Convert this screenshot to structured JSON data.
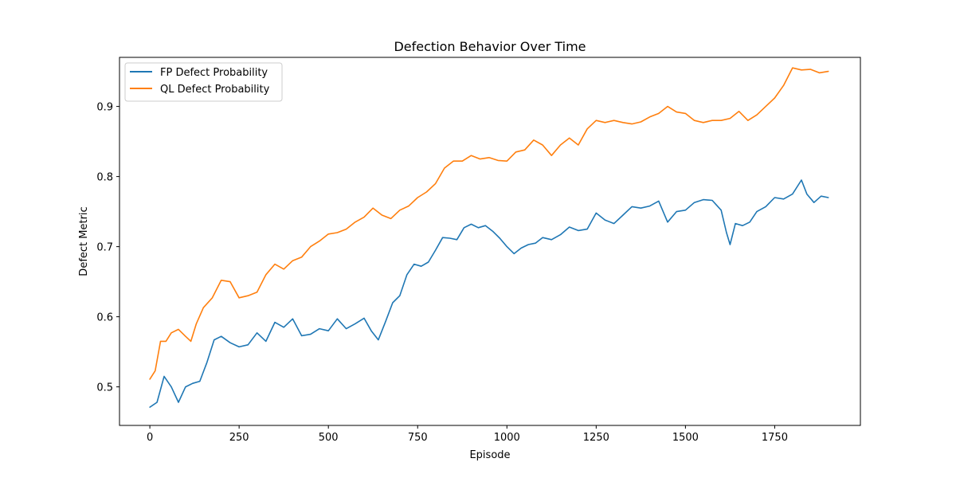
{
  "chart_data": {
    "type": "line",
    "title": "Defection Behavior Over Time",
    "xlabel": "Episode",
    "ylabel": "Defect Metric",
    "xlim": [
      -85,
      1990
    ],
    "ylim": [
      0.445,
      0.97
    ],
    "xticks": [
      0,
      250,
      500,
      750,
      1000,
      1250,
      1500,
      1750
    ],
    "xtick_labels": [
      "0",
      "250",
      "500",
      "750",
      "1000",
      "1250",
      "1500",
      "1750"
    ],
    "yticks": [
      0.5,
      0.6,
      0.7,
      0.8,
      0.9
    ],
    "ytick_labels": [
      "0.5",
      "0.6",
      "0.7",
      "0.8",
      "0.9"
    ],
    "grid": false,
    "legend_position": "upper-left",
    "series": [
      {
        "name": "FP Defect Probability",
        "color": "#1f77b4",
        "x": [
          0,
          20,
          40,
          60,
          80,
          100,
          120,
          140,
          160,
          180,
          200,
          225,
          250,
          275,
          300,
          325,
          350,
          375,
          400,
          425,
          450,
          475,
          500,
          525,
          550,
          575,
          600,
          620,
          640,
          660,
          680,
          700,
          720,
          740,
          760,
          780,
          800,
          820,
          840,
          860,
          880,
          900,
          920,
          940,
          960,
          980,
          1000,
          1020,
          1040,
          1060,
          1080,
          1100,
          1125,
          1150,
          1175,
          1200,
          1225,
          1250,
          1275,
          1300,
          1325,
          1350,
          1375,
          1400,
          1425,
          1450,
          1475,
          1500,
          1525,
          1550,
          1575,
          1600,
          1615,
          1625,
          1640,
          1660,
          1680,
          1700,
          1725,
          1750,
          1775,
          1800,
          1825,
          1840,
          1860,
          1880,
          1900
        ],
        "y": [
          0.471,
          0.478,
          0.515,
          0.5,
          0.478,
          0.5,
          0.505,
          0.508,
          0.535,
          0.567,
          0.572,
          0.563,
          0.557,
          0.56,
          0.577,
          0.565,
          0.592,
          0.585,
          0.597,
          0.573,
          0.575,
          0.583,
          0.58,
          0.597,
          0.583,
          0.59,
          0.598,
          0.58,
          0.567,
          0.593,
          0.62,
          0.63,
          0.66,
          0.675,
          0.672,
          0.678,
          0.695,
          0.713,
          0.712,
          0.71,
          0.727,
          0.732,
          0.727,
          0.73,
          0.722,
          0.712,
          0.7,
          0.69,
          0.698,
          0.703,
          0.705,
          0.713,
          0.71,
          0.717,
          0.728,
          0.723,
          0.725,
          0.748,
          0.738,
          0.733,
          0.745,
          0.757,
          0.755,
          0.758,
          0.765,
          0.735,
          0.75,
          0.752,
          0.763,
          0.767,
          0.766,
          0.752,
          0.72,
          0.703,
          0.733,
          0.73,
          0.735,
          0.75,
          0.757,
          0.77,
          0.768,
          0.775,
          0.795,
          0.775,
          0.763,
          0.772,
          0.77
        ]
      },
      {
        "name": "QL Defect Probability",
        "color": "#ff7f0e",
        "x": [
          0,
          15,
          30,
          45,
          60,
          80,
          100,
          115,
          130,
          150,
          175,
          200,
          225,
          250,
          275,
          300,
          325,
          350,
          375,
          400,
          425,
          450,
          475,
          500,
          525,
          550,
          575,
          600,
          625,
          650,
          675,
          700,
          725,
          750,
          775,
          800,
          825,
          850,
          875,
          900,
          925,
          950,
          975,
          1000,
          1025,
          1050,
          1075,
          1100,
          1125,
          1150,
          1175,
          1200,
          1225,
          1250,
          1275,
          1300,
          1325,
          1350,
          1375,
          1400,
          1425,
          1450,
          1475,
          1500,
          1525,
          1550,
          1575,
          1600,
          1625,
          1650,
          1675,
          1700,
          1725,
          1750,
          1775,
          1800,
          1825,
          1850,
          1875,
          1900
        ],
        "y": [
          0.511,
          0.523,
          0.565,
          0.565,
          0.577,
          0.582,
          0.572,
          0.565,
          0.59,
          0.613,
          0.627,
          0.652,
          0.65,
          0.627,
          0.63,
          0.635,
          0.66,
          0.675,
          0.668,
          0.68,
          0.685,
          0.7,
          0.708,
          0.718,
          0.72,
          0.725,
          0.735,
          0.742,
          0.755,
          0.745,
          0.74,
          0.752,
          0.758,
          0.77,
          0.778,
          0.79,
          0.812,
          0.822,
          0.822,
          0.83,
          0.825,
          0.827,
          0.823,
          0.822,
          0.835,
          0.838,
          0.852,
          0.845,
          0.83,
          0.845,
          0.855,
          0.845,
          0.868,
          0.88,
          0.877,
          0.88,
          0.877,
          0.875,
          0.878,
          0.885,
          0.89,
          0.9,
          0.892,
          0.89,
          0.88,
          0.877,
          0.88,
          0.88,
          0.883,
          0.893,
          0.88,
          0.888,
          0.9,
          0.912,
          0.93,
          0.955,
          0.952,
          0.953,
          0.948,
          0.95
        ]
      }
    ]
  }
}
